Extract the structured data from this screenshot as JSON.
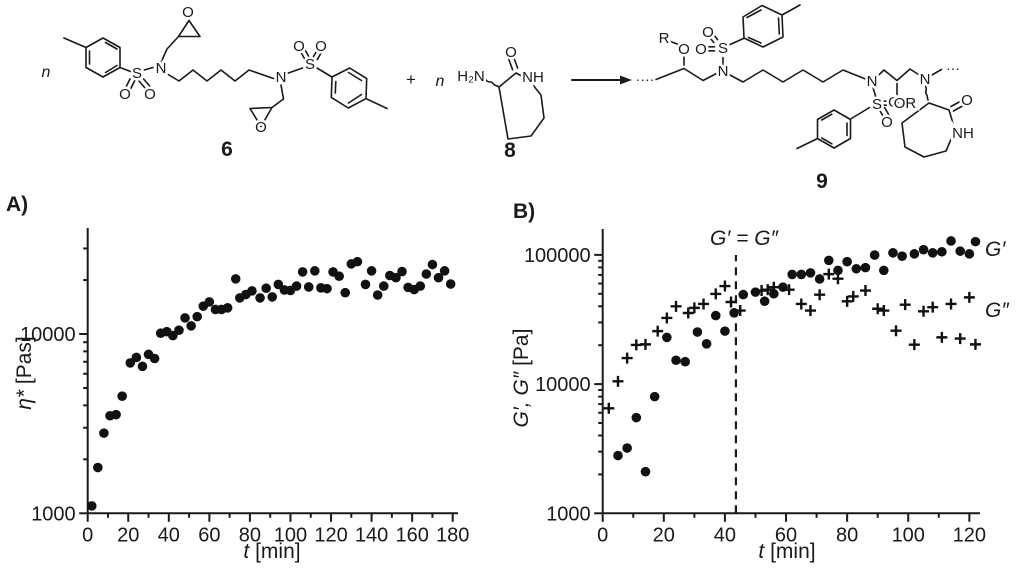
{
  "figure": {
    "background": "#ffffff",
    "ink": "#1a1a1a"
  },
  "scheme": {
    "labels": {
      "n_left": "n",
      "plus": "+",
      "n_mid": "n",
      "h2n": "H₂N",
      "c6_S1": "S",
      "c6_O1a": "O",
      "c6_O1b": "O",
      "c6_N1": "N",
      "c6_Oep1": "O",
      "c6_N2": "N",
      "c6_S2": "S",
      "c6_O2a": "O",
      "c6_O2b": "O",
      "c6_Oep2": "O",
      "c8_O": "O",
      "c8_NH": "NH",
      "c9_dots_left": "····",
      "c9_R": "R",
      "c9_O_ether": "O",
      "c9_O_s1a": "O",
      "c9_O_s1b": "O",
      "c9_S1": "S",
      "c9_N1": "N",
      "c9_N2": "N",
      "c9_S2": "S",
      "c9_O_s2a": "O",
      "c9_O_s2b": "O",
      "c9_OR": "OR",
      "c9_N3": "N",
      "c9_dots_right": "···",
      "c9_O_lactam": "O",
      "c9_NH": "NH"
    },
    "numbers": {
      "c6": "6",
      "c8": "8",
      "c9": "9"
    }
  },
  "panelA": {
    "tag": "A)",
    "ylabel_main": "η*",
    "ylabel_unit": " [Pas]",
    "xlabel_italic": "t",
    "xlabel_unit": " [min]"
  },
  "panelB": {
    "tag": "B)",
    "ylabel_italic": "G′, G″",
    "ylabel_unit": " [Pa]",
    "xlabel_italic": "t",
    "xlabel_unit": " [min]",
    "annotation": "G′ = G″",
    "legend_g1": "G′",
    "legend_g2": "G″"
  },
  "chart_data": [
    {
      "type": "scatter",
      "panel": "A",
      "xlabel": "t [min]",
      "ylabel": "η* [Pas]",
      "x_scale": "linear",
      "y_scale": "log",
      "xlim": [
        0,
        190
      ],
      "ylim": [
        1000,
        39000
      ],
      "x_ticks": [
        0,
        20,
        40,
        60,
        80,
        100,
        120,
        140,
        160,
        180
      ],
      "y_ticks": [
        1000,
        10000
      ],
      "grid": false,
      "legend_position": "none",
      "series": [
        {
          "name": "η*",
          "marker": "circle",
          "x": [
            2,
            5,
            8,
            11,
            14,
            17,
            21,
            24,
            27,
            30,
            33,
            36,
            39,
            42,
            45,
            48,
            51,
            54,
            57,
            60,
            63,
            66,
            69,
            73,
            75,
            78,
            81,
            85,
            88,
            91,
            94,
            97,
            100,
            103,
            106,
            109,
            112,
            115,
            118,
            121,
            124,
            127,
            130,
            133,
            137,
            140,
            143,
            146,
            149,
            152,
            155,
            158,
            161,
            164,
            167,
            170,
            173,
            176,
            179
          ],
          "y": [
            1100,
            1800,
            2800,
            3500,
            3550,
            4500,
            6900,
            7400,
            6600,
            7700,
            7300,
            10100,
            10300,
            9800,
            10500,
            12300,
            11100,
            12500,
            14300,
            15100,
            13700,
            13700,
            14000,
            20300,
            15900,
            16600,
            17400,
            15900,
            18000,
            16100,
            18900,
            17600,
            17500,
            18500,
            22200,
            18300,
            22500,
            18100,
            17900,
            22200,
            21000,
            17000,
            24600,
            25300,
            18900,
            22500,
            16500,
            18500,
            21200,
            20600,
            22300,
            18200,
            17700,
            18500,
            21600,
            24400,
            20600,
            22500,
            19000
          ]
        }
      ]
    },
    {
      "type": "scatter",
      "panel": "B",
      "xlabel": "t [min]",
      "ylabel": "G′, G″ [Pa]",
      "x_scale": "linear",
      "y_scale": "log",
      "xlim": [
        0,
        125
      ],
      "ylim": [
        1000,
        160000
      ],
      "x_ticks": [
        0,
        20,
        40,
        60,
        80,
        100,
        120
      ],
      "y_ticks": [
        1000,
        10000,
        100000
      ],
      "grid": false,
      "legend_position": "right",
      "annotation": {
        "text": "G′ = G″",
        "x_min": 43.6,
        "style": "dashed-vertical"
      },
      "series": [
        {
          "name": "G′",
          "marker": "circle",
          "x": [
            5,
            8,
            11,
            14,
            17,
            21,
            24,
            27,
            31,
            34,
            37,
            40,
            43,
            46,
            50,
            53,
            56,
            59,
            62,
            65,
            68,
            71,
            74,
            77,
            80,
            83,
            86,
            89,
            92,
            95,
            98,
            102,
            105,
            108,
            111,
            114,
            117,
            120,
            122
          ],
          "y": [
            2800,
            3200,
            5500,
            2100,
            8000,
            23000,
            15300,
            14900,
            25300,
            20500,
            33900,
            25700,
            35600,
            49300,
            51500,
            43800,
            50000,
            56300,
            70600,
            70600,
            72600,
            65100,
            90700,
            75900,
            88600,
            78100,
            79700,
            99700,
            75900,
            103800,
            97700,
            101900,
            109700,
            103800,
            105700,
            128200,
            106900,
            101900,
            126700
          ]
        },
        {
          "name": "G″",
          "marker": "plus",
          "x": [
            2,
            5,
            8,
            11,
            14,
            18,
            21,
            24,
            28,
            30,
            33,
            37,
            40,
            42,
            45,
            52,
            54,
            56,
            61,
            65,
            68,
            71,
            74,
            77,
            80,
            82,
            86,
            90,
            92,
            96,
            99,
            102,
            105,
            108,
            111,
            114,
            117,
            120,
            122
          ],
          "y": [
            6500,
            10500,
            15900,
            20100,
            20300,
            25700,
            32500,
            40000,
            35500,
            38900,
            41700,
            49900,
            57400,
            43200,
            37100,
            53000,
            53800,
            56200,
            53800,
            41700,
            37100,
            49200,
            71000,
            65400,
            43700,
            47700,
            53000,
            38300,
            37100,
            25900,
            41200,
            20200,
            36600,
            39400,
            23000,
            41700,
            22500,
            46900,
            20300
          ]
        }
      ]
    }
  ]
}
